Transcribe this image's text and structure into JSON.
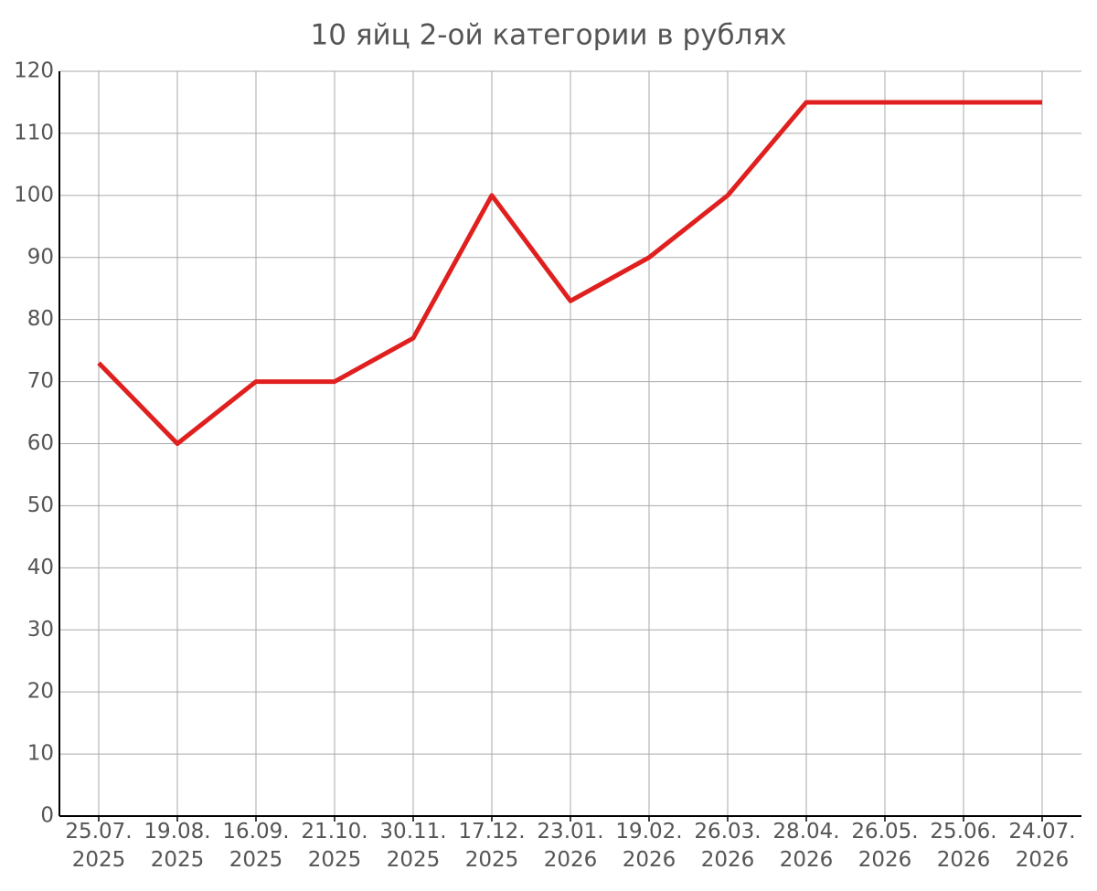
{
  "chart_data": {
    "type": "line",
    "title": "10 яйц 2-ой категории в рублях",
    "categories": [
      "25.07. 2025",
      "19.08. 2025",
      "16.09. 2025",
      "21.10. 2025",
      "30.11. 2025",
      "17.12. 2025",
      "23.01. 2026",
      "19.02. 2026",
      "26.03. 2026",
      "28.04. 2026",
      "26.05. 2026",
      "25.06. 2026",
      "24.07. 2026"
    ],
    "values": [
      73,
      60,
      70,
      70,
      77,
      100,
      83,
      90,
      100,
      115,
      115,
      115,
      115
    ],
    "color": "#e0201f",
    "ylim": [
      0,
      120
    ],
    "yticks": [
      0,
      10,
      20,
      30,
      40,
      50,
      60,
      70,
      80,
      90,
      100,
      110,
      120
    ],
    "grid": true
  }
}
